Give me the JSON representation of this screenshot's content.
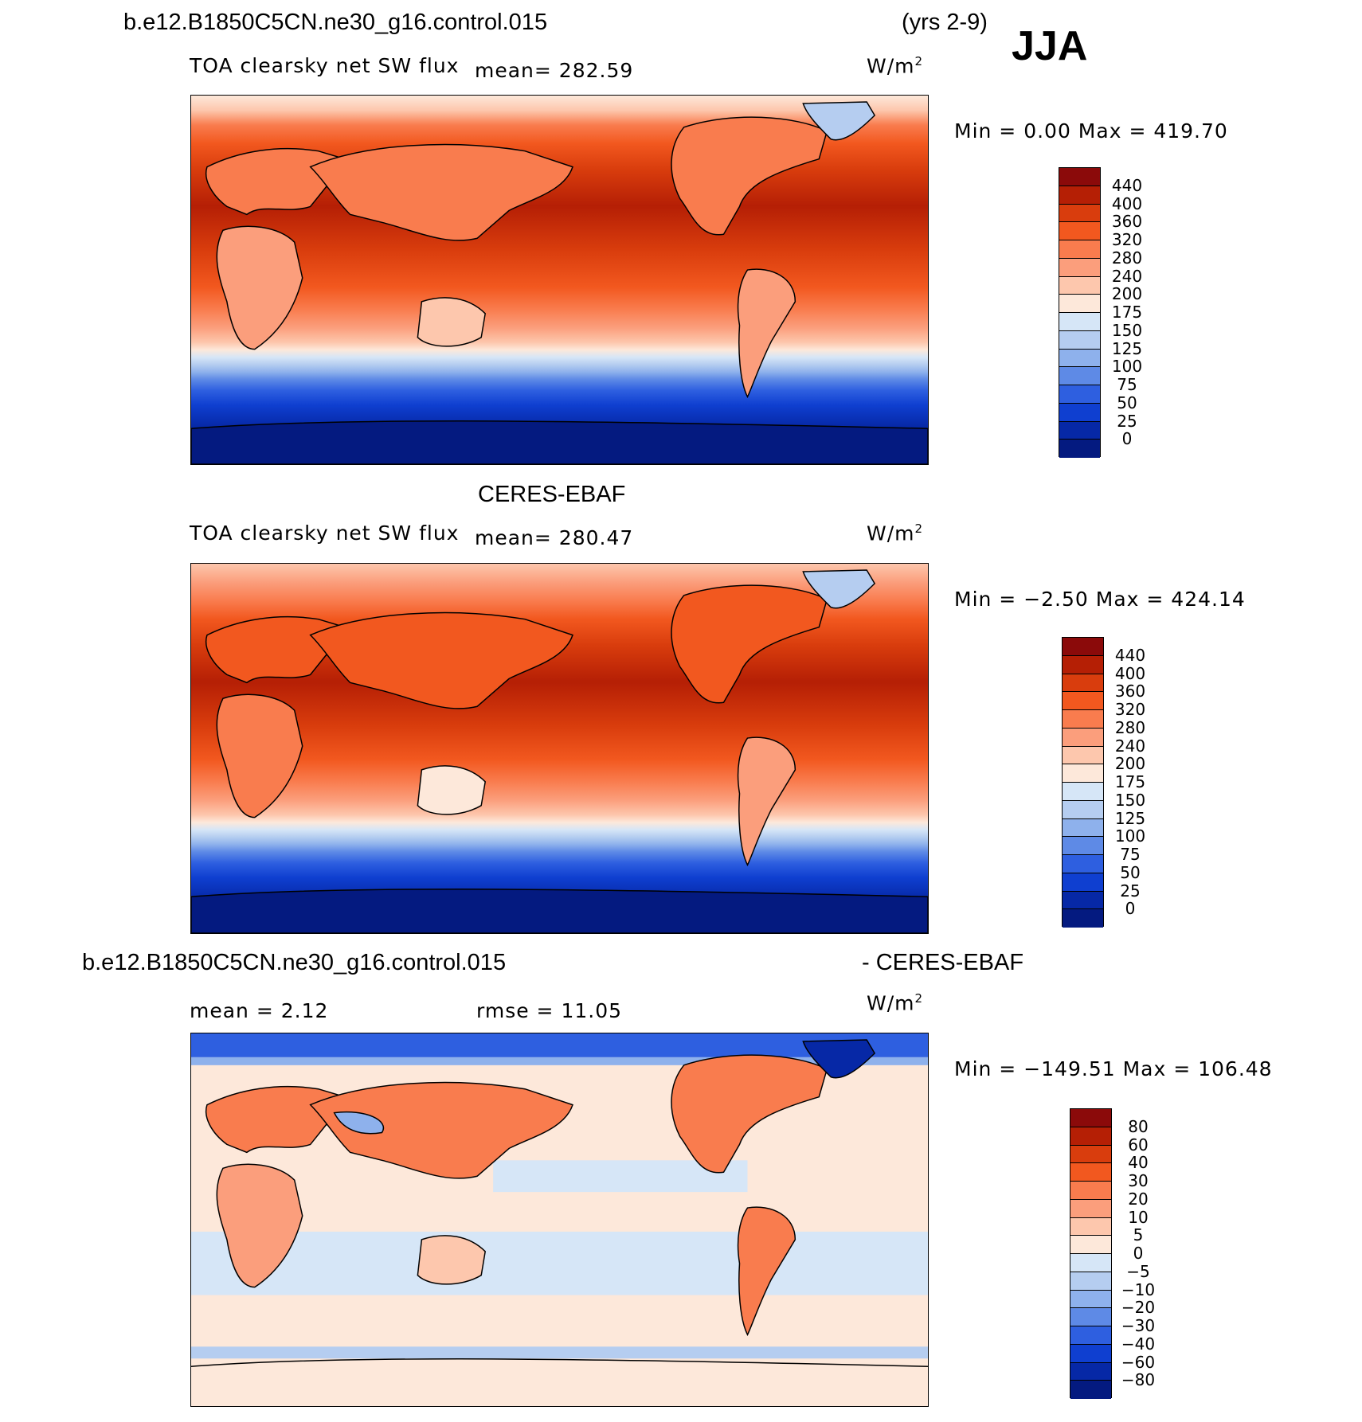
{
  "page": {
    "case_name": "b.e12.B1850C5CN.ne30_g16.control.015",
    "years": "(yrs 2-9)",
    "season": "JJA"
  },
  "panels": [
    {
      "id": "model",
      "variable": "TOA clearsky net SW flux",
      "mean_text": "mean=  282.59",
      "units": "W/m",
      "units_exp": "2",
      "minmax": "Min =    0.00 Max = 419.70",
      "colorbar": {
        "ticks": [
          "440",
          "400",
          "360",
          "320",
          "280",
          "240",
          "200",
          "175",
          "150",
          "125",
          "100",
          "75",
          "50",
          "25",
          "0"
        ],
        "colors": [
          "#8b0a0a",
          "#b51f05",
          "#d93d0d",
          "#f2581f",
          "#f97c4e",
          "#fb9e7c",
          "#fdc7ad",
          "#fde8da",
          "#d6e6f7",
          "#b5cdf0",
          "#8eb1ec",
          "#5e8ae6",
          "#2e5fe0",
          "#0f3fd0",
          "#0628a6",
          "#041a80"
        ]
      }
    },
    {
      "id": "obs",
      "title": "CERES-EBAF",
      "variable": "TOA clearsky net SW flux",
      "mean_text": "mean=  280.47",
      "units": "W/m",
      "units_exp": "2",
      "minmax": "Min =  −2.50 Max = 424.14",
      "colorbar": {
        "ticks": [
          "440",
          "400",
          "360",
          "320",
          "280",
          "240",
          "200",
          "175",
          "150",
          "125",
          "100",
          "75",
          "50",
          "25",
          "0"
        ],
        "colors": [
          "#8b0a0a",
          "#b51f05",
          "#d93d0d",
          "#f2581f",
          "#f97c4e",
          "#fb9e7c",
          "#fdc7ad",
          "#fde8da",
          "#d6e6f7",
          "#b5cdf0",
          "#8eb1ec",
          "#5e8ae6",
          "#2e5fe0",
          "#0f3fd0",
          "#0628a6",
          "#041a80"
        ]
      }
    },
    {
      "id": "diff",
      "title_left": "b.e12.B1850C5CN.ne30_g16.control.015",
      "title_right": "- CERES-EBAF",
      "mean_text": "mean =    2.12",
      "rmse_text": "rmse =   11.05",
      "units": "W/m",
      "units_exp": "2",
      "minmax": "Min = −149.51 Max = 106.48",
      "colorbar": {
        "ticks": [
          "80",
          "60",
          "40",
          "30",
          "20",
          "10",
          "5",
          "0",
          "−5",
          "−10",
          "−20",
          "−30",
          "−40",
          "−60",
          "−80"
        ],
        "colors": [
          "#8b0a0a",
          "#b51f05",
          "#d93d0d",
          "#f2581f",
          "#f97c4e",
          "#fb9e7c",
          "#fdc7ad",
          "#fde8da",
          "#d6e6f7",
          "#b5cdf0",
          "#8eb1ec",
          "#5e8ae6",
          "#2e5fe0",
          "#0f3fd0",
          "#0628a6",
          "#041a80"
        ]
      }
    }
  ]
}
